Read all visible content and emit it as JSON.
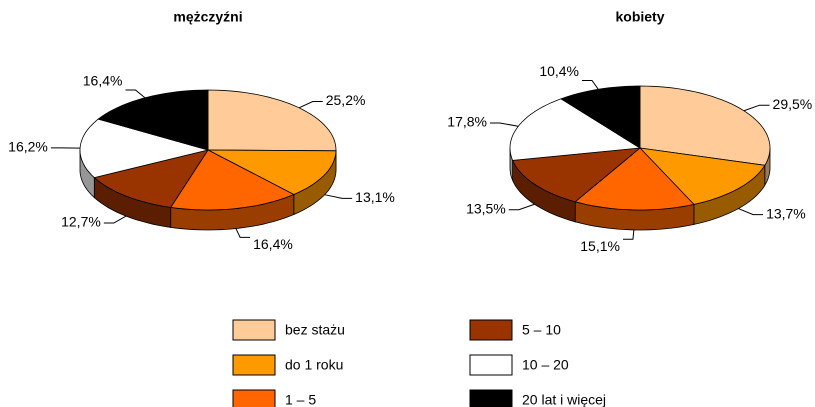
{
  "chart_data": [
    {
      "type": "pie",
      "title": "mężczyźni",
      "values": [
        25.2,
        13.1,
        16.4,
        12.7,
        16.2,
        16.4
      ],
      "value_labels": [
        "25,2%",
        "13,1%",
        "16,4%",
        "12,7%",
        "16,2%",
        "16,4%"
      ]
    },
    {
      "type": "pie",
      "title": "kobiety",
      "values": [
        29.5,
        13.7,
        15.1,
        13.5,
        17.8,
        10.4
      ],
      "value_labels": [
        "29,5%",
        "13,7%",
        "15,1%",
        "13,5%",
        "17,8%",
        "10,4%"
      ]
    }
  ],
  "legend": {
    "categories": [
      "bez stażu",
      "do 1 roku",
      "1 – 5",
      "5 – 10",
      "10 – 20",
      "20 lat i więcej"
    ],
    "colors": [
      "#FFCC99",
      "#FF9900",
      "#FF6600",
      "#993300",
      "#FFFFFF",
      "#000000"
    ]
  }
}
